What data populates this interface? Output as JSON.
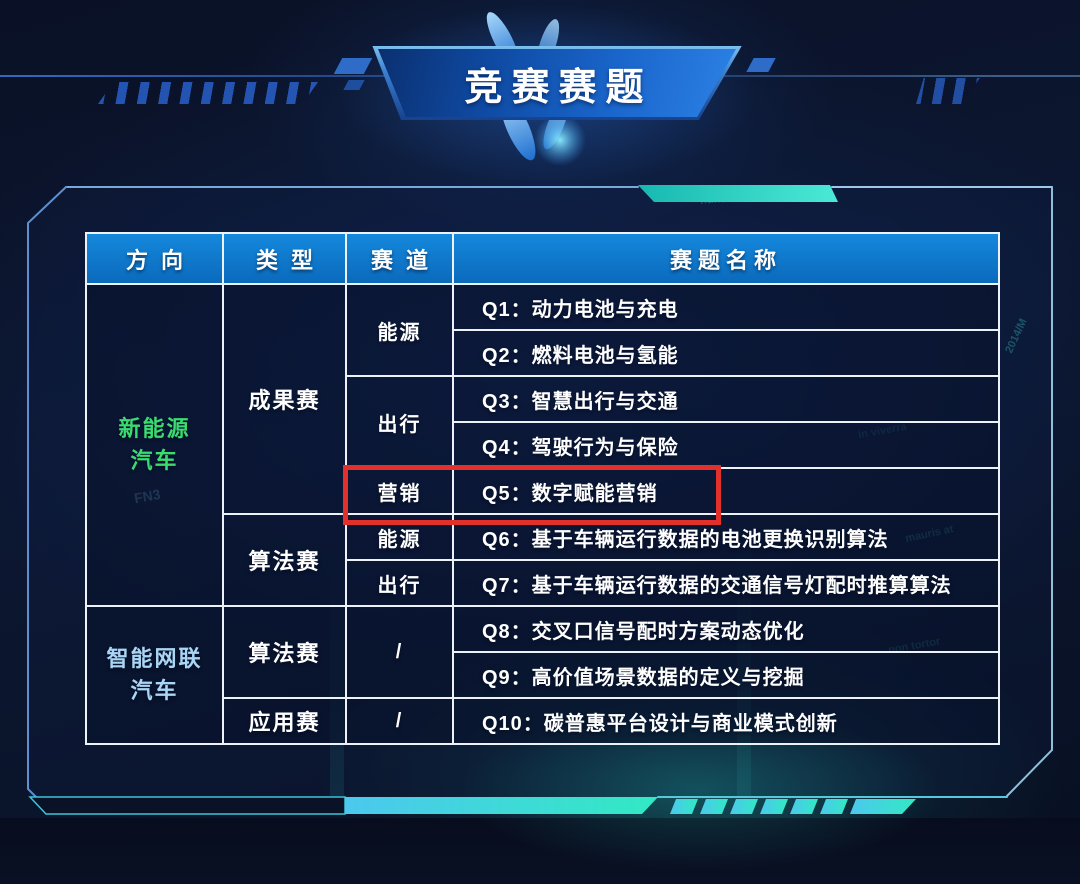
{
  "banner": {
    "title": "竞赛赛题"
  },
  "table": {
    "headers": [
      "方向",
      "类型",
      "赛道",
      "赛题名称"
    ],
    "groups": [
      {
        "direction": "新能源汽车",
        "direction_lines": [
          "新能源",
          "汽车"
        ],
        "direction_color": "#3bdb70",
        "types": [
          {
            "name": "成果赛",
            "tracks": [
              {
                "name": "能源",
                "topics": [
                  "Q1：动力电池与充电",
                  "Q2：燃料电池与氢能"
                ]
              },
              {
                "name": "出行",
                "topics": [
                  "Q3：智慧出行与交通",
                  "Q4：驾驶行为与保险"
                ]
              },
              {
                "name": "营销",
                "topics": [
                  "Q5：数字赋能营销"
                ],
                "highlighted": true
              }
            ]
          },
          {
            "name": "算法赛",
            "tracks": [
              {
                "name": "能源",
                "topics": [
                  "Q6：基于车辆运行数据的电池更换识别算法"
                ]
              },
              {
                "name": "出行",
                "topics": [
                  "Q7：基于车辆运行数据的交通信号灯配时推算算法"
                ]
              }
            ]
          }
        ]
      },
      {
        "direction": "智能网联汽车",
        "direction_lines": [
          "智能网联",
          "汽车"
        ],
        "direction_color": "#aad6f5",
        "types": [
          {
            "name": "算法赛",
            "tracks": [
              {
                "name": "/",
                "topics": [
                  "Q8：交叉口信号配时方案动态优化",
                  "Q9：高价值场景数据的定义与挖掘"
                ]
              }
            ]
          },
          {
            "name": "应用赛",
            "tracks": [
              {
                "name": "/",
                "topics": [
                  "Q10：碳普惠平台设计与商业模式创新"
                ]
              }
            ]
          }
        ]
      }
    ]
  },
  "highlight": {
    "color": "#e2312b",
    "target": "Q5：数字赋能营销"
  },
  "colors": {
    "header_blue": "#1488dc",
    "cell_border": "#edf2f8",
    "accent_teal": "#35e8c2",
    "accent_cyan": "#4cc8ee",
    "panel_line": "#6d9bd0",
    "green_direction": "#3bdb70",
    "blue_direction": "#aad6f5",
    "highlight_red": "#e2312b"
  },
  "background_fragments": [
    "FN3",
    "2014/M",
    "mauris at",
    "non tortor",
    "in viverra",
    "nunc non tortor"
  ]
}
